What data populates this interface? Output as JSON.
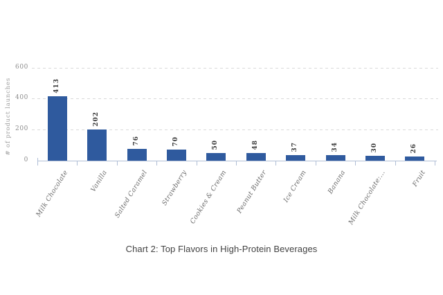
{
  "page": {
    "background": "#ffffff"
  },
  "chart_data": {
    "type": "bar",
    "title": "Chart 2: Top Flavors in High-Protein Beverages",
    "xlabel": "",
    "ylabel": "# of product launches",
    "categories": [
      "Milk Chocolate",
      "Vanilla",
      "Salted Caramel",
      "Strawberry",
      "Cookies & Cream",
      "Peanut Butter",
      "Ice Cream",
      "Banana",
      "Milk Chocolate:...",
      "Fruit"
    ],
    "values": [
      413,
      202,
      76,
      70,
      50,
      48,
      37,
      34,
      30,
      26
    ],
    "yticks": [
      0,
      200,
      400,
      600
    ],
    "ylim": [
      0,
      600
    ],
    "grid": "horizontal-dashed",
    "legend": "none",
    "bar_color": "#2f5a9e",
    "colors": {
      "axis": "#afbdd5",
      "gridline": "#d9d9d9",
      "tick_label": "#8c8c8c",
      "value_label": "#3a3a3a",
      "category_label": "#6b6b6b",
      "title": "#414141"
    }
  }
}
